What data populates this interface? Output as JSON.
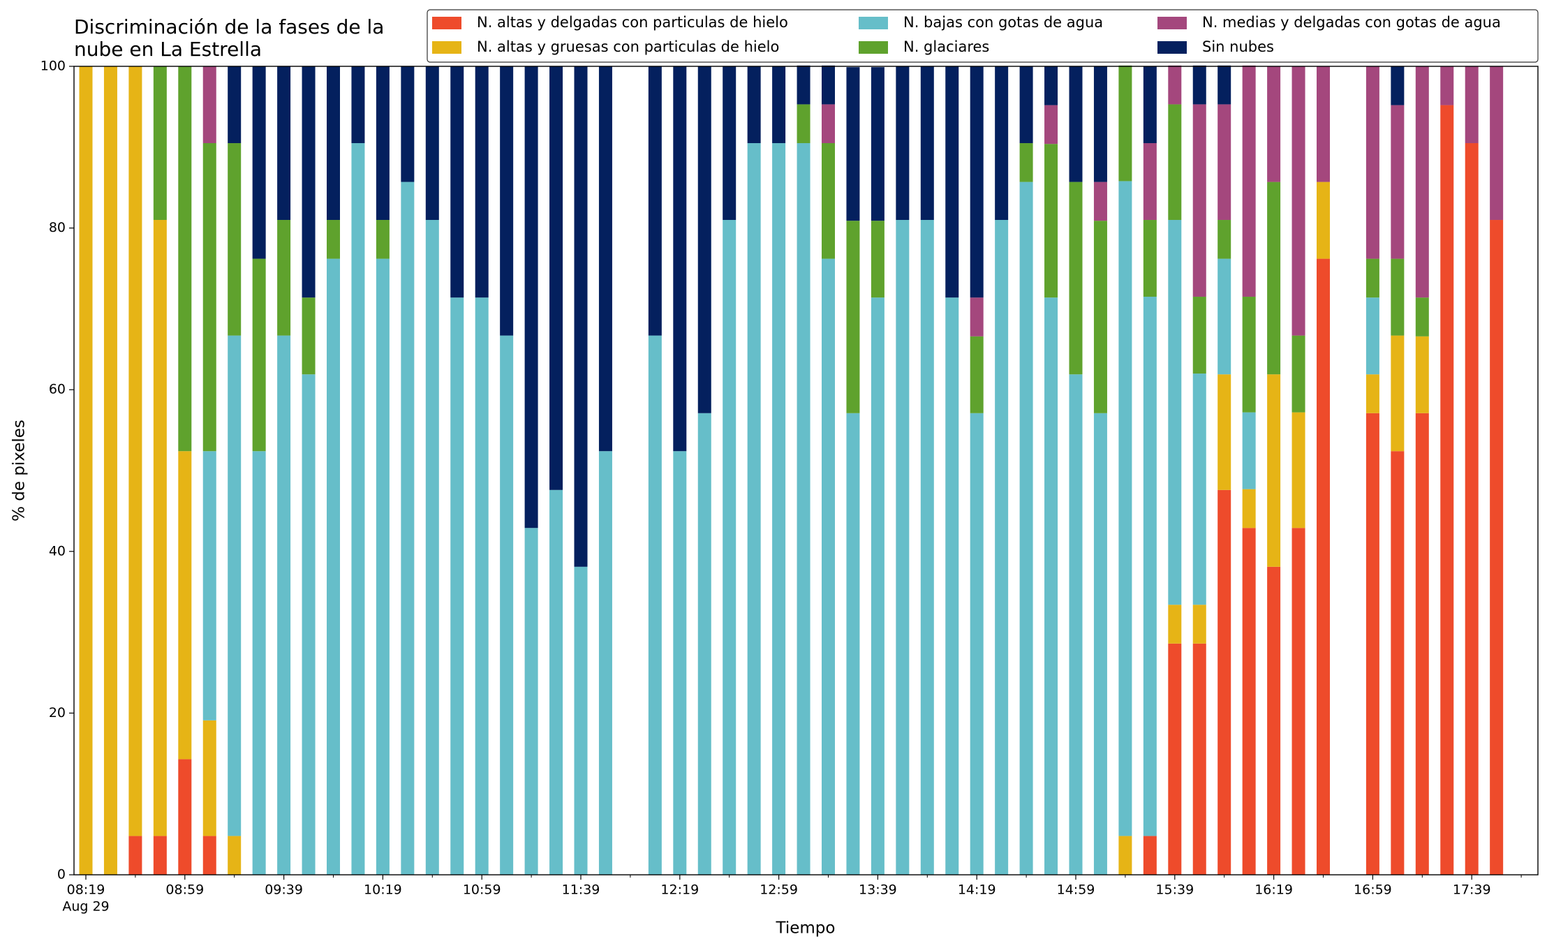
{
  "chart_data": {
    "type": "stacked_bar",
    "title": "Discriminación de la fases de la\nnube en La Estrella",
    "xlabel": "Tiempo",
    "ylabel": "% de pixeles",
    "x_date_label": "Aug 29",
    "categories": [
      "08:19",
      null,
      null,
      null,
      "08:59",
      null,
      null,
      null,
      "09:39",
      null,
      null,
      null,
      "10:19",
      null,
      null,
      null,
      "10:59",
      null,
      null,
      null,
      "11:39",
      null,
      null,
      null,
      "12:19",
      null,
      null,
      null,
      "12:59",
      null,
      null,
      null,
      "13:39",
      null,
      null,
      null,
      "14:19",
      null,
      null,
      null,
      "14:59",
      null,
      null,
      null,
      "15:39",
      null,
      null,
      null,
      "16:19",
      null,
      null,
      null,
      "16:59",
      null,
      null,
      null,
      "17:39",
      null
    ],
    "ylim": [
      0,
      100
    ],
    "yticks": [
      0,
      20,
      40,
      60,
      80,
      100
    ],
    "series": [
      {
        "name": "N. altas y delgadas con particulas de hielo",
        "color": "#ee4b2b",
        "values": [
          0,
          0,
          4.8,
          4.8,
          14.3,
          4.8,
          0,
          0,
          0,
          0,
          0,
          0,
          0,
          0,
          0,
          0,
          0,
          0,
          0,
          0,
          0,
          0,
          null,
          0,
          0,
          0,
          0,
          0,
          0,
          0,
          0,
          0,
          0,
          0,
          0,
          0,
          0,
          0,
          0,
          0,
          0,
          0,
          0,
          4.8,
          28.6,
          28.6,
          47.6,
          42.9,
          38.1,
          42.9,
          76.2,
          null,
          57.1,
          52.4,
          57.1,
          95.2,
          90.5,
          81.0
        ]
      },
      {
        "name": "N. altas y gruesas con particulas de hielo",
        "color": "#e6b416",
        "values": [
          100,
          100,
          95.2,
          76.2,
          38.1,
          14.3,
          4.8,
          0,
          0,
          0,
          0,
          0,
          0,
          0,
          0,
          0,
          0,
          0,
          0,
          0,
          0,
          0,
          null,
          0,
          0,
          0,
          0,
          0,
          0,
          0,
          0,
          0,
          0,
          0,
          0,
          0,
          0,
          0,
          0,
          0,
          0,
          0,
          4.8,
          0,
          4.8,
          4.8,
          14.3,
          4.8,
          23.8,
          14.3,
          9.5,
          null,
          4.8,
          14.3,
          9.5,
          0,
          0,
          0
        ]
      },
      {
        "name": "N. bajas con gotas de agua",
        "color": "#66bec9",
        "values": [
          0,
          0,
          0,
          0,
          0,
          33.3,
          61.9,
          52.4,
          66.7,
          61.9,
          76.2,
          90.5,
          76.2,
          85.7,
          81.0,
          71.4,
          71.4,
          66.7,
          42.9,
          47.6,
          38.1,
          52.4,
          null,
          66.7,
          52.4,
          57.1,
          81.0,
          90.5,
          90.5,
          90.5,
          76.2,
          57.1,
          71.4,
          81.0,
          81.0,
          71.4,
          57.1,
          81.0,
          85.7,
          71.4,
          61.9,
          57.1,
          81.0,
          66.7,
          47.6,
          28.6,
          14.3,
          9.5,
          0,
          0,
          0,
          null,
          9.5,
          0,
          0,
          0,
          0,
          0
        ]
      },
      {
        "name": "N. glaciares",
        "color": "#5fa22d",
        "values": [
          0,
          0,
          0,
          19.0,
          47.6,
          38.1,
          23.8,
          23.8,
          14.3,
          9.5,
          4.8,
          0,
          4.8,
          0,
          0,
          0,
          0,
          0,
          0,
          0,
          0,
          0,
          null,
          0,
          0,
          0,
          0,
          0,
          0,
          4.8,
          14.3,
          23.8,
          9.5,
          0,
          0,
          0,
          9.5,
          0,
          4.8,
          19.0,
          23.8,
          23.8,
          14.3,
          9.5,
          14.3,
          9.5,
          4.8,
          14.3,
          23.8,
          9.5,
          0,
          null,
          4.8,
          9.5,
          4.8,
          0,
          0,
          0
        ]
      },
      {
        "name": "N. medias y delgadas con gotas de agua",
        "color": "#a4477d",
        "values": [
          0,
          0,
          0,
          0,
          0,
          9.5,
          0,
          0,
          0,
          0,
          0,
          0,
          0,
          0,
          0,
          0,
          0,
          0,
          0,
          0,
          0,
          0,
          null,
          0,
          0,
          0,
          0,
          0,
          0,
          0,
          4.8,
          0,
          0,
          0,
          0,
          0,
          4.8,
          0,
          0,
          4.8,
          0,
          4.8,
          0,
          9.5,
          4.8,
          23.8,
          14.3,
          28.6,
          14.3,
          33.3,
          14.3,
          null,
          23.8,
          19.0,
          28.6,
          4.8,
          9.5,
          19.0
        ]
      },
      {
        "name": "Sin nubes",
        "color": "#04205e",
        "values": [
          0,
          0,
          0,
          0,
          0,
          0,
          9.5,
          23.8,
          19.0,
          28.6,
          19.0,
          9.5,
          19.0,
          14.3,
          19.0,
          28.6,
          28.6,
          33.3,
          57.1,
          52.4,
          61.9,
          47.6,
          null,
          33.3,
          47.6,
          42.9,
          19.0,
          9.5,
          9.5,
          4.8,
          4.8,
          19.0,
          19.0,
          19.0,
          19.0,
          28.6,
          28.6,
          19.0,
          9.5,
          4.8,
          14.3,
          14.3,
          0,
          9.5,
          0,
          4.8,
          4.8,
          0,
          0,
          0,
          0,
          null,
          0,
          4.8,
          0,
          0,
          0,
          0
        ]
      }
    ]
  }
}
